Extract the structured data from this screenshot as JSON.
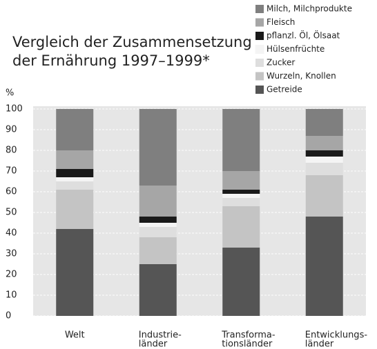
{
  "chart_data": {
    "type": "stacked_bar",
    "title": [
      "Vergleich der Zusammensetzung",
      "der Ernährung 1997–1999*"
    ],
    "ylabel": "%",
    "categories": [
      [
        "Welt"
      ],
      [
        "Industrie-",
        "länder"
      ],
      [
        "Transforma-",
        "tionsländer"
      ],
      [
        "Entwicklungs-",
        "länder"
      ]
    ],
    "series": [
      {
        "name": "Getreide",
        "color": "#555555",
        "values": [
          42,
          25,
          33,
          48
        ]
      },
      {
        "name": "Wurzeln, Knollen",
        "color": "#c4c4c4",
        "values": [
          19,
          13,
          20,
          20
        ]
      },
      {
        "name": "Zucker",
        "color": "#dedede",
        "values": [
          4,
          5,
          4,
          6
        ]
      },
      {
        "name": "Hülsenfrüchte",
        "color": "#f4f4f4",
        "values": [
          2,
          2,
          2,
          3
        ]
      },
      {
        "name": "pflanzl. Öl, Ölsaat",
        "color": "#1a1a1a",
        "values": [
          4,
          3,
          2,
          3
        ]
      },
      {
        "name": "Fleisch",
        "color": "#a6a6a6",
        "values": [
          9,
          15,
          9,
          7
        ]
      },
      {
        "name": "Milch, Milchprodukte",
        "color": "#7f7f7f",
        "values": [
          20,
          37,
          30,
          13
        ]
      }
    ],
    "ylim": [
      0,
      100
    ],
    "yticks": [
      0,
      10,
      20,
      30,
      40,
      50,
      60,
      70,
      80,
      90,
      100
    ],
    "grid": true
  }
}
